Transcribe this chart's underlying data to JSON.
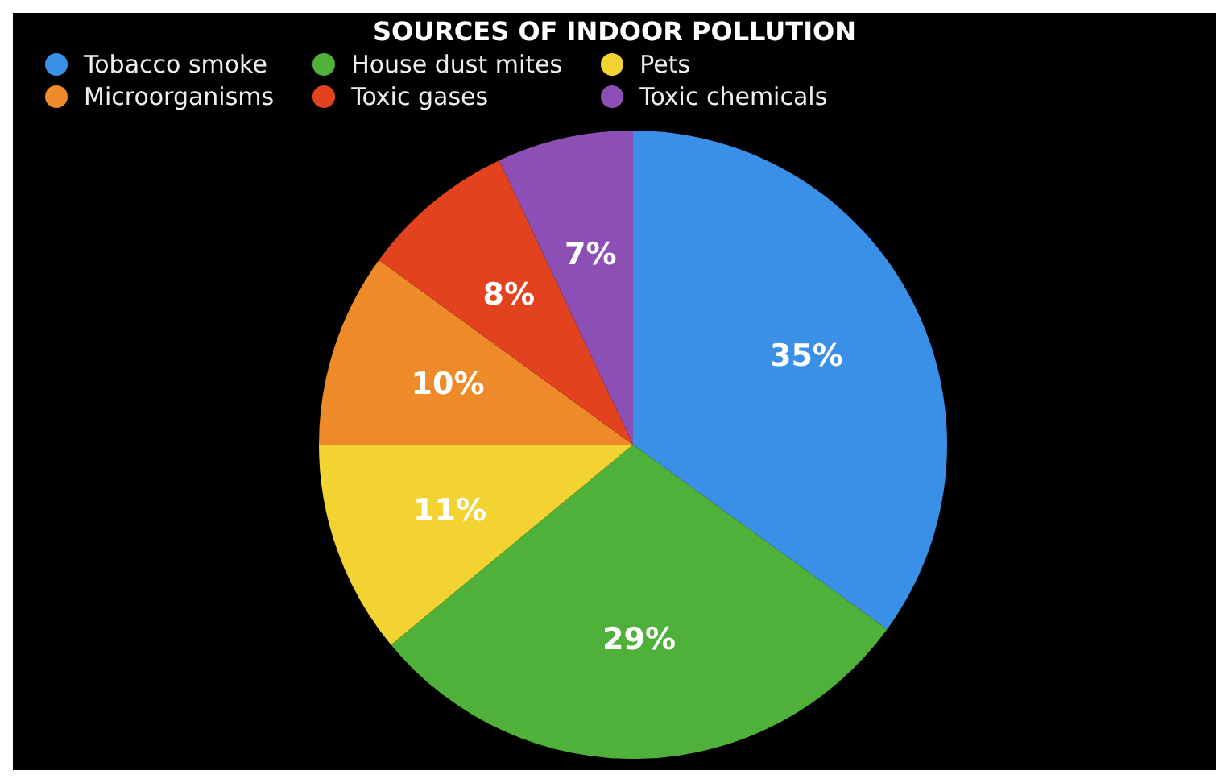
{
  "chart_data": {
    "type": "pie",
    "title": "SOURCES OF INDOOR POLLUTION",
    "categories": [
      "Tobacco smoke",
      "House dust mites",
      "Pets",
      "Microorganisms",
      "Toxic gases",
      "Toxic chemicals"
    ],
    "values": [
      35,
      29,
      11,
      10,
      8,
      7
    ],
    "colors": [
      "#3a8fe6",
      "#4fb03a",
      "#f2d332",
      "#ee8a2a",
      "#e3421f",
      "#8b4fb5"
    ],
    "value_labels": [
      "35%",
      "29%",
      "11%",
      "10%",
      "8%",
      "7%"
    ],
    "legend": "top left"
  }
}
